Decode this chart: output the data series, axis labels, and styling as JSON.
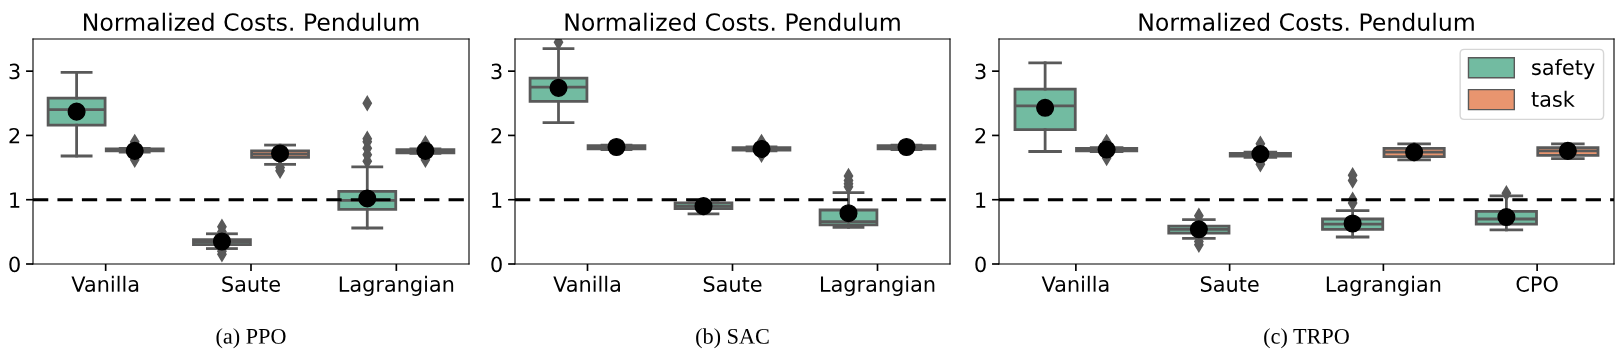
{
  "chart_data": [
    {
      "type": "box",
      "title": "Normalized Costs. Pendulum",
      "annotations": [
        "(a) PPO"
      ],
      "categories": [
        "Vanilla",
        "Saute",
        "Lagrangian"
      ],
      "ylim": [
        0,
        3.5
      ],
      "yticks": [
        0,
        1,
        2,
        3
      ],
      "grid": false,
      "legend": false,
      "ref_lines": [
        {
          "axis": "y",
          "value": 1,
          "color": "#000000",
          "line_style": "dashed"
        }
      ],
      "series": [
        {
          "color": "#72bba1",
          "boxes": [
            {
              "low": 1.68,
              "q1": 2.16,
              "median": 2.4,
              "q3": 2.58,
              "high": 2.98,
              "mean": 2.37
            },
            {
              "low": 0.24,
              "q1": 0.3,
              "median": 0.34,
              "q3": 0.38,
              "high": 0.47,
              "mean": 0.35,
              "outliers": [
                0.15,
                0.2,
                0.5,
                0.58
              ]
            },
            {
              "low": 0.56,
              "q1": 0.85,
              "median": 0.99,
              "q3": 1.13,
              "high": 1.51,
              "mean": 1.02,
              "outliers": [
                1.6,
                1.7,
                1.8,
                1.9,
                1.95,
                2.5
              ]
            }
          ]
        },
        {
          "color": "#e8956f",
          "boxes": [
            {
              "low": 1.74,
              "q1": 1.76,
              "median": 1.77,
              "q3": 1.79,
              "high": 1.8,
              "mean": 1.76,
              "outliers": [
                1.62,
                1.9
              ]
            },
            {
              "low": 1.55,
              "q1": 1.66,
              "median": 1.71,
              "q3": 1.76,
              "high": 1.85,
              "mean": 1.72,
              "outliers": [
                1.45,
                1.5
              ]
            },
            {
              "low": 1.72,
              "q1": 1.73,
              "median": 1.76,
              "q3": 1.78,
              "high": 1.79,
              "mean": 1.76,
              "outliers": [
                1.62,
                1.88
              ]
            }
          ]
        }
      ]
    },
    {
      "type": "box",
      "title": "Normalized Costs. Pendulum",
      "annotations": [
        "(b) SAC"
      ],
      "categories": [
        "Vanilla",
        "Saute",
        "Lagrangian"
      ],
      "ylim": [
        0,
        3.5
      ],
      "yticks": [
        0,
        1,
        2,
        3
      ],
      "grid": false,
      "legend": false,
      "ref_lines": [
        {
          "axis": "y",
          "value": 1,
          "color": "#000000",
          "line_style": "dashed"
        }
      ],
      "series": [
        {
          "color": "#72bba1",
          "boxes": [
            {
              "low": 2.2,
              "q1": 2.53,
              "median": 2.75,
              "q3": 2.89,
              "high": 3.35,
              "mean": 2.74,
              "outliers": [
                3.45
              ]
            },
            {
              "low": 0.78,
              "q1": 0.86,
              "median": 0.9,
              "q3": 0.95,
              "high": 0.95,
              "mean": 0.9
            },
            {
              "low": 0.57,
              "q1": 0.61,
              "median": 0.66,
              "q3": 0.84,
              "high": 1.11,
              "mean": 0.79,
              "outliers": [
                1.2,
                1.25,
                1.3,
                1.37
              ]
            }
          ]
        },
        {
          "color": "#e8956f",
          "boxes": [
            {
              "low": 1.78,
              "q1": 1.79,
              "median": 1.82,
              "q3": 1.84,
              "high": 1.85,
              "mean": 1.82
            },
            {
              "low": 1.76,
              "q1": 1.77,
              "median": 1.79,
              "q3": 1.81,
              "high": 1.82,
              "mean": 1.79,
              "outliers": [
                1.7,
                1.9
              ]
            },
            {
              "low": 1.78,
              "q1": 1.79,
              "median": 1.82,
              "q3": 1.84,
              "high": 1.85,
              "mean": 1.82
            }
          ]
        }
      ]
    },
    {
      "type": "box",
      "title": "Normalized Costs. Pendulum",
      "annotations": [
        "(c) TRPO"
      ],
      "categories": [
        "Vanilla",
        "Saute",
        "Lagrangian",
        "CPO"
      ],
      "ylim": [
        0,
        3.5
      ],
      "yticks": [
        0,
        1,
        2,
        3
      ],
      "grid": false,
      "legend": "top right",
      "ref_lines": [
        {
          "axis": "y",
          "value": 1,
          "color": "#000000",
          "line_style": "dashed"
        }
      ],
      "series": [
        {
          "name": "safety",
          "color": "#72bba1",
          "boxes": [
            {
              "low": 1.75,
              "q1": 2.09,
              "median": 2.46,
              "q3": 2.72,
              "high": 3.13,
              "mean": 2.43
            },
            {
              "low": 0.4,
              "q1": 0.48,
              "median": 0.54,
              "q3": 0.59,
              "high": 0.69,
              "mean": 0.54,
              "outliers": [
                0.3,
                0.35,
                0.75
              ]
            },
            {
              "low": 0.42,
              "q1": 0.54,
              "median": 0.62,
              "q3": 0.7,
              "high": 0.83,
              "mean": 0.63,
              "outliers": [
                0.95,
                1.0,
                1.3,
                1.38
              ]
            },
            {
              "low": 0.53,
              "q1": 0.62,
              "median": 0.7,
              "q3": 0.82,
              "high": 1.06,
              "mean": 0.73,
              "outliers": [
                1.1
              ]
            }
          ]
        },
        {
          "name": "task",
          "color": "#e8956f",
          "boxes": [
            {
              "low": 1.75,
              "q1": 1.76,
              "median": 1.78,
              "q3": 1.8,
              "high": 1.81,
              "mean": 1.78,
              "outliers": [
                1.65,
                1.9
              ]
            },
            {
              "low": 1.66,
              "q1": 1.68,
              "median": 1.7,
              "q3": 1.72,
              "high": 1.74,
              "mean": 1.71,
              "outliers": [
                1.55,
                1.6,
                1.8,
                1.87
              ]
            },
            {
              "low": 1.62,
              "q1": 1.67,
              "median": 1.74,
              "q3": 1.8,
              "high": 1.87,
              "mean": 1.74
            },
            {
              "low": 1.64,
              "q1": 1.69,
              "median": 1.76,
              "q3": 1.81,
              "high": 1.87,
              "mean": 1.76
            }
          ]
        }
      ]
    }
  ]
}
